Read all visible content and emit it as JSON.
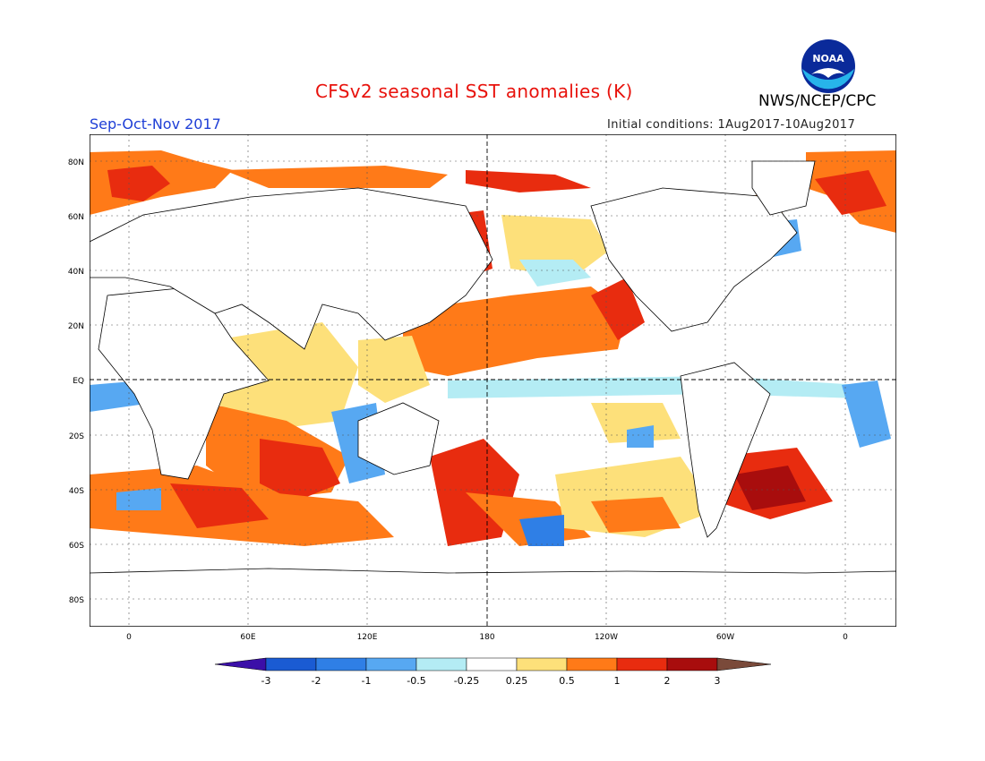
{
  "header": {
    "title": "CFSv2 seasonal SST anomalies (K)",
    "agency": "NWS/NCEP/CPC",
    "season": "Sep-Oct-Nov 2017",
    "initial_conditions": "Initial conditions: 1Aug2017-10Aug2017",
    "logo_text": "NOAA"
  },
  "map": {
    "lat_labels": [
      "80N",
      "60N",
      "40N",
      "20N",
      "EQ",
      "20S",
      "40S",
      "60S",
      "80S"
    ],
    "lon_labels": [
      "0",
      "60E",
      "120E",
      "180",
      "120W",
      "60W",
      "0"
    ]
  },
  "colorbar": {
    "labels": [
      "-3",
      "-2",
      "-1",
      "-0.5",
      "-0.25",
      "0.25",
      "0.5",
      "1",
      "2",
      "3"
    ],
    "colors": [
      "#3b0fa8",
      "#1a5bd3",
      "#2f7fe6",
      "#57a8f2",
      "#b4ecf4",
      "#ffffff",
      "#fde07a",
      "#ff7a18",
      "#e82c0f",
      "#a80d0d",
      "#7a4a3a"
    ]
  }
}
